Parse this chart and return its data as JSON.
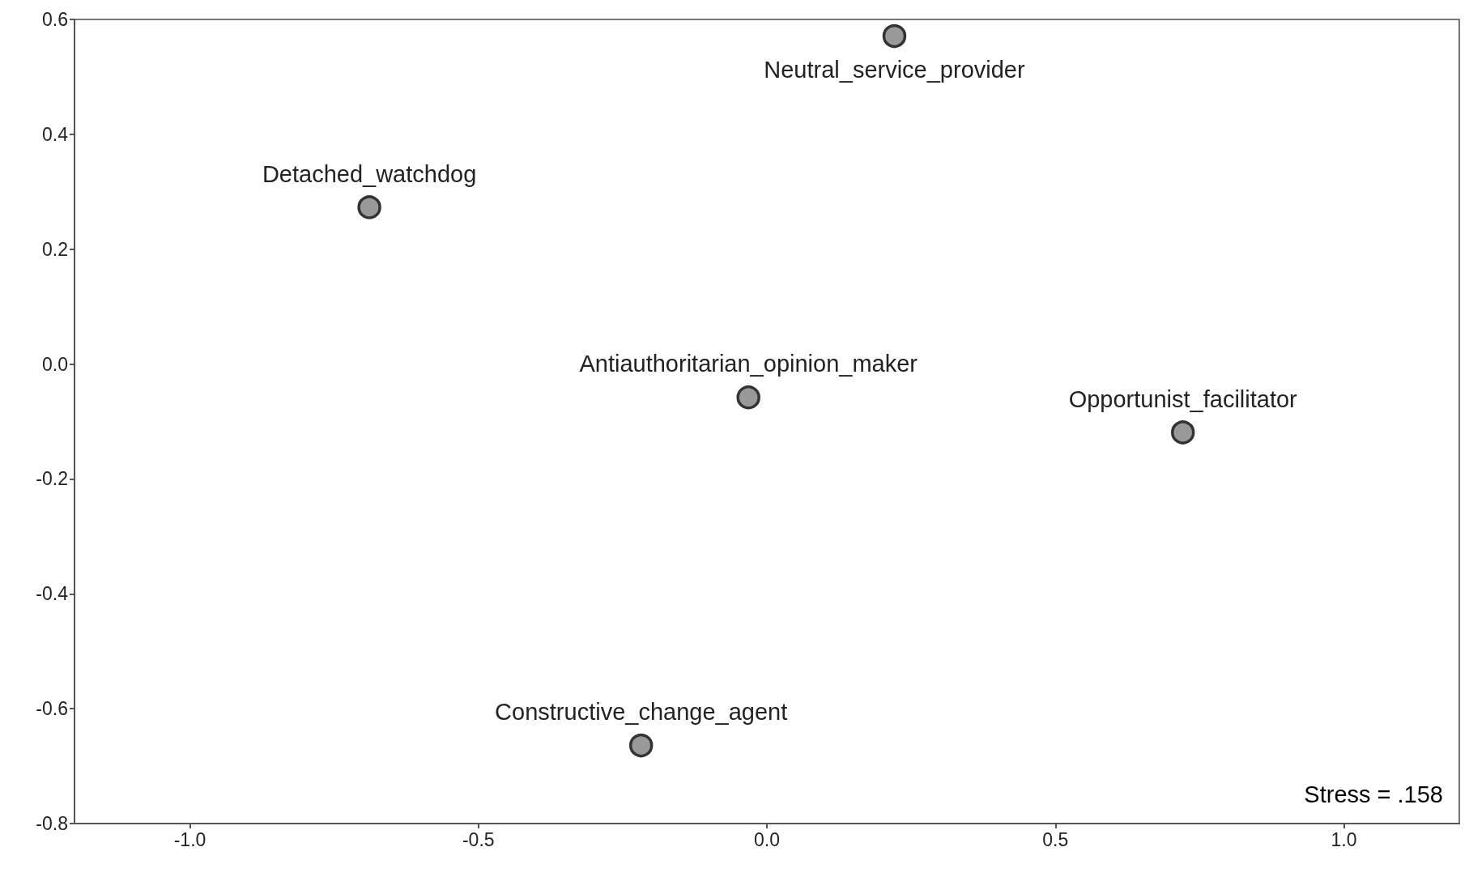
{
  "chart_data": {
    "type": "scatter",
    "marker": "circle",
    "legend": false,
    "grid": false,
    "xlim": [
      -1.2,
      1.2
    ],
    "ylim": [
      -0.8,
      0.6
    ],
    "xticks": [
      {
        "value": -1,
        "label": "-1.0"
      },
      {
        "value": -0.5,
        "label": "-0.5"
      },
      {
        "value": 0,
        "label": "0.0"
      },
      {
        "value": 0.5,
        "label": "0.5"
      },
      {
        "value": 1,
        "label": "1.0"
      }
    ],
    "yticks": [
      {
        "value": -0.8,
        "label": "-0.8"
      },
      {
        "value": -0.6,
        "label": "-0.6"
      },
      {
        "value": -0.4,
        "label": "-0.4"
      },
      {
        "value": -0.2,
        "label": "-0.2"
      },
      {
        "value": 0,
        "label": "0.0"
      },
      {
        "value": 0.2,
        "label": "0.2"
      },
      {
        "value": 0.4,
        "label": "0.4"
      },
      {
        "value": 0.6,
        "label": "0.6"
      }
    ],
    "series": [
      {
        "name": "Neutral_service_provider",
        "color": "#999999",
        "x": [
          0.221
        ],
        "values": [
          0.571
        ]
      },
      {
        "name": "Detached_watchdog",
        "color": "#999999",
        "x": [
          -0.689
        ],
        "values": [
          0.273
        ]
      },
      {
        "name": "Antiauthoritarian_opinion_maker",
        "color": "#999999",
        "x": [
          -0.032
        ],
        "values": [
          -0.058
        ]
      },
      {
        "name": "Opportunist_facilitator",
        "color": "#999999",
        "x": [
          0.721
        ],
        "values": [
          -0.119
        ]
      },
      {
        "name": "Constructive_change_agent",
        "color": "#999999",
        "x": [
          -0.218
        ],
        "values": [
          -0.664
        ]
      }
    ],
    "annotations": [
      "Stress = .158"
    ]
  }
}
